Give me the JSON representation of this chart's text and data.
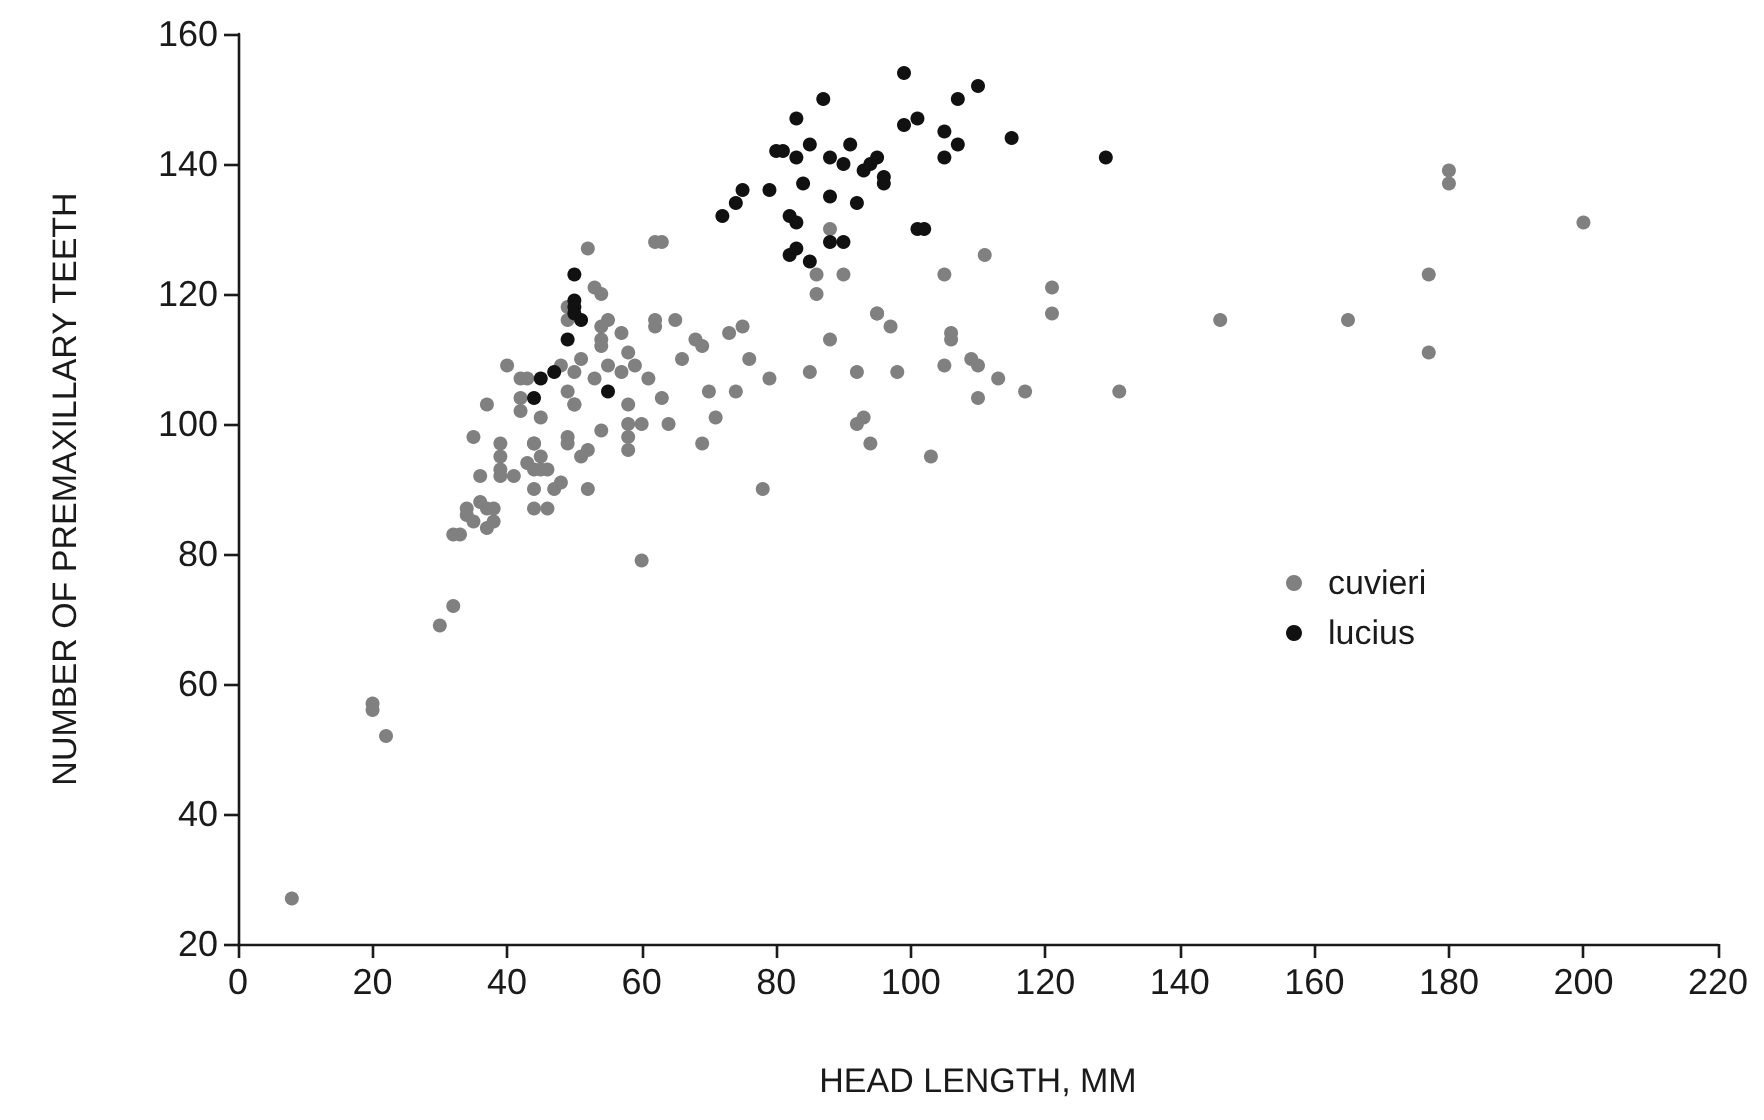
{
  "chart_data": {
    "type": "scatter",
    "xlabel": "HEAD LENGTH, MM",
    "ylabel": "NUMBER OF PREMAXILLARY TEETH",
    "xlim": [
      0,
      220
    ],
    "xticks": [
      0,
      20,
      40,
      60,
      80,
      100,
      120,
      140,
      160,
      180,
      200,
      220
    ],
    "ylim": [
      20,
      160
    ],
    "yticks": [
      20,
      40,
      60,
      80,
      100,
      120,
      140,
      160
    ],
    "marker": "circle",
    "legend": "right",
    "series": [
      {
        "name": "cuvieri",
        "color": "#808080",
        "x": [
          8,
          20,
          20,
          22,
          30,
          32,
          32,
          33,
          34,
          34,
          35,
          36,
          37,
          38,
          37,
          38,
          36,
          35,
          39,
          39,
          39,
          39,
          41,
          42,
          44,
          44,
          43,
          44,
          45,
          45,
          46,
          44,
          47,
          48,
          44,
          46,
          45,
          49,
          49,
          51,
          52,
          54,
          52,
          58,
          60,
          58,
          58,
          64,
          69,
          71,
          60,
          52,
          62,
          63,
          53,
          54,
          55,
          54,
          54,
          54,
          57,
          62,
          62,
          65,
          68,
          69,
          66,
          58,
          59,
          57,
          55,
          51,
          49,
          49,
          50,
          48,
          40,
          42,
          43,
          42,
          37,
          49,
          50,
          50,
          53,
          58,
          61,
          63,
          70,
          88,
          86,
          90,
          86,
          105,
          111,
          121,
          121,
          95,
          95,
          97,
          106,
          106,
          88,
          109,
          110,
          113,
          117,
          110,
          131,
          105,
          98,
          92,
          85,
          79,
          76,
          74,
          73,
          75,
          93,
          92,
          94,
          103,
          78,
          180,
          180,
          200,
          177,
          146,
          165,
          177
        ],
        "values": [
          27,
          57,
          56,
          52,
          69,
          72,
          83,
          83,
          87,
          86,
          85,
          88,
          84,
          85,
          87,
          87,
          92,
          98,
          97,
          95,
          93,
          92,
          92,
          102,
          97,
          97,
          94,
          93,
          93,
          95,
          93,
          90,
          90,
          91,
          87,
          87,
          101,
          98,
          97,
          95,
          96,
          99,
          90,
          100,
          100,
          98,
          96,
          100,
          97,
          101,
          79,
          127,
          128,
          128,
          121,
          120,
          116,
          115,
          113,
          112,
          114,
          116,
          115,
          116,
          113,
          112,
          110,
          111,
          109,
          108,
          109,
          110,
          118,
          116,
          108,
          109,
          109,
          107,
          107,
          104,
          103,
          105,
          103,
          103,
          107,
          103,
          107,
          104,
          105,
          130,
          123,
          123,
          120,
          123,
          126,
          121,
          117,
          117,
          117,
          115,
          114,
          113,
          113,
          110,
          109,
          107,
          105,
          104,
          105,
          109,
          108,
          108,
          108,
          107,
          110,
          105,
          114,
          115,
          101,
          100,
          97,
          95,
          90,
          139,
          137,
          131,
          123,
          116,
          116,
          111
        ]
      },
      {
        "name": "lucius",
        "color": "#111111",
        "x": [
          50,
          50,
          50,
          50,
          51,
          49,
          45,
          47,
          44,
          55,
          72,
          74,
          75,
          79,
          80,
          81,
          83,
          83,
          87,
          85,
          84,
          88,
          82,
          83,
          82,
          83,
          85,
          88,
          90,
          88,
          90,
          91,
          92,
          93,
          94,
          95,
          96,
          96,
          99,
          99,
          101,
          101,
          102,
          105,
          107,
          105,
          107,
          110,
          115,
          129
        ],
        "values": [
          123,
          119,
          118,
          117,
          116,
          113,
          107,
          108,
          104,
          105,
          132,
          134,
          136,
          136,
          142,
          142,
          141,
          147,
          150,
          143,
          137,
          135,
          132,
          131,
          126,
          127,
          125,
          128,
          128,
          141,
          140,
          143,
          134,
          139,
          140,
          141,
          138,
          137,
          154,
          146,
          147,
          130,
          130,
          145,
          143,
          141,
          150,
          152,
          144,
          141
        ]
      }
    ]
  }
}
